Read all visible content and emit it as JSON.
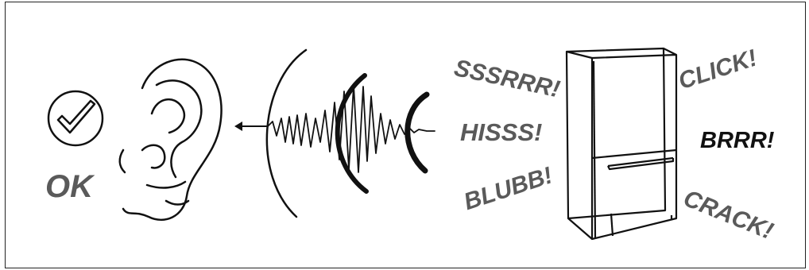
{
  "status": {
    "label": "OK",
    "icon": "checkmark-circle-icon"
  },
  "sounds": [
    "SSSRRR!",
    "HISSS!",
    "BLUBB!",
    "CLICK!",
    "BRRR!",
    "CRACK!"
  ],
  "icons": [
    "ear-icon",
    "sound-wave-icon",
    "left-arrow-icon",
    "fridge-icon"
  ],
  "colors": {
    "line": "#111111",
    "label_grey": "#5a5a5a",
    "label_dark": "#111111"
  }
}
